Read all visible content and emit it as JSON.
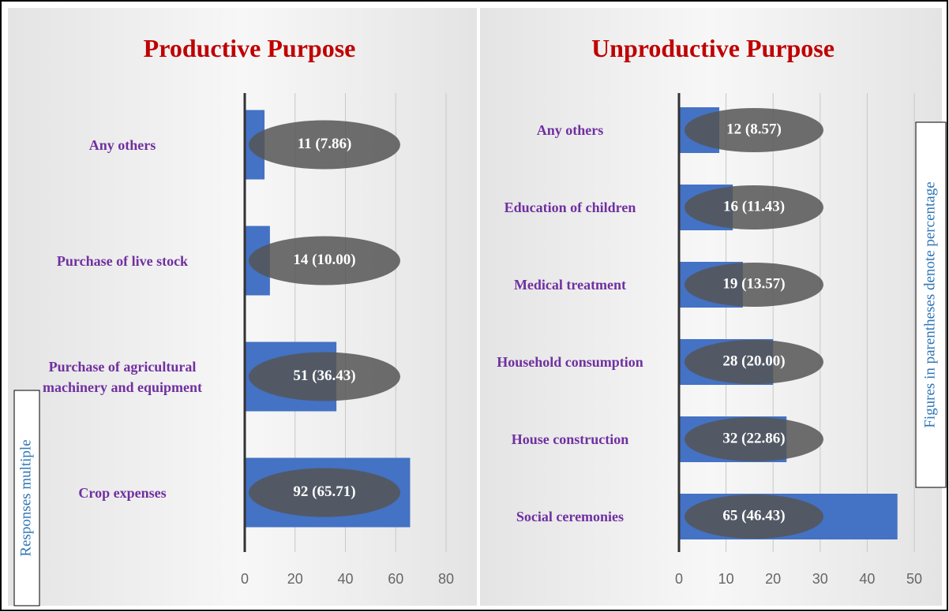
{
  "chart_data": [
    {
      "type": "bar",
      "orientation": "horizontal",
      "title": "Productive Purpose",
      "categories": [
        "Any others",
        "Purchase of live stock",
        "Purchase of agricultural machinery and equipment",
        "Crop expenses"
      ],
      "values": [
        7.86,
        10.0,
        36.43,
        65.71
      ],
      "value_labels": [
        "11 (7.86)",
        "14 (10.00)",
        "51 (36.43)",
        "92 (65.71)"
      ],
      "color": "#4472c4",
      "xlim": [
        0,
        80
      ],
      "xticks": [
        0,
        20,
        40,
        60,
        80
      ],
      "grid": true,
      "annotation": "Responses multiple"
    },
    {
      "type": "bar",
      "orientation": "horizontal",
      "title": "Unproductive Purpose",
      "categories": [
        "Any others",
        "Education of children",
        "Medical treatment",
        "Household consumption",
        "House construction",
        "Social ceremonies"
      ],
      "values": [
        8.57,
        11.43,
        13.57,
        20.0,
        22.86,
        46.43
      ],
      "value_labels": [
        "12 (8.57)",
        "16 (11.43)",
        "19 (13.57)",
        "28 (20.00)",
        "32 (22.86)",
        "65 (46.43)"
      ],
      "color": "#4472c4",
      "xlim": [
        0,
        50
      ],
      "xticks": [
        0,
        10,
        20,
        30,
        40,
        50
      ],
      "grid": true,
      "annotation": "Figures in parentheses denote percentage"
    }
  ]
}
